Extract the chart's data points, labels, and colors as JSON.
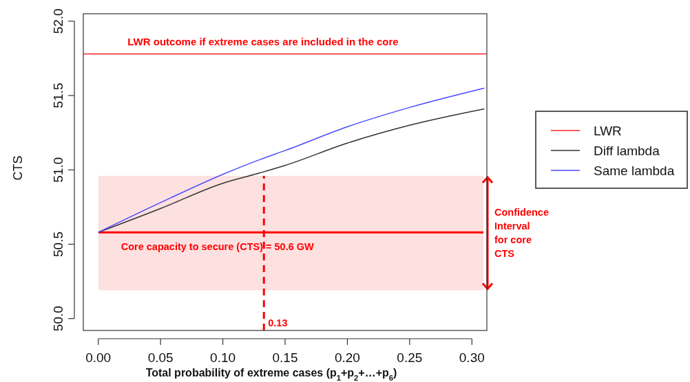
{
  "chart_data": {
    "type": "line",
    "xlabel": "Total probability of extreme cases (p$_{1}$+p$_{2}$+…+p$_{6}$)",
    "ylabel": "CTS",
    "xlim": [
      -0.012,
      0.312
    ],
    "xticks": [
      {
        "value": 0,
        "label": "0.00"
      },
      0.05,
      {
        "value": 0.1,
        "label": "0.10"
      },
      0.15,
      {
        "value": 0.2,
        "label": "0.20"
      },
      0.25,
      {
        "value": 0.3,
        "label": "0.30"
      }
    ],
    "ylim": [
      49.92,
      52.05
    ],
    "yticks": [
      {
        "value": 50,
        "label": "50.0"
      },
      50.5,
      {
        "value": 51,
        "label": "51.0"
      },
      51.5,
      {
        "value": 52,
        "label": "52.0"
      }
    ],
    "series": [
      {
        "name": "LWR",
        "color": "#ff2020",
        "x": [
          -0.012,
          0.312
        ],
        "values": [
          51.78,
          51.78
        ]
      },
      {
        "name": "Diff lambda",
        "color": "#333333",
        "x": [
          0,
          0.05,
          0.1,
          0.13,
          0.15,
          0.2,
          0.25,
          0.31
        ],
        "values": [
          50.58,
          50.74,
          50.91,
          50.98,
          51.03,
          51.18,
          51.3,
          51.41
        ]
      },
      {
        "name": "Same lambda",
        "color": "#4a4aff",
        "x": [
          0,
          0.05,
          0.1,
          0.13,
          0.15,
          0.2,
          0.25,
          0.31
        ],
        "values": [
          50.58,
          50.78,
          50.97,
          51.07,
          51.13,
          51.29,
          51.42,
          51.55
        ]
      }
    ],
    "ref_lines": [
      {
        "axis": "y",
        "value": 50.58,
        "label": "Core capacity to secure (CTS) = 50.6 GW",
        "color": "#ff0000",
        "line_style": "solid"
      },
      {
        "axis": "x",
        "value": 0.133,
        "label": "0.13",
        "color": "#ff0000",
        "line_style": "dashed"
      }
    ],
    "bands": [
      {
        "axis": "y",
        "from": 50.19,
        "to": 50.96,
        "label": "Confidence Interval for core CTS",
        "color": "#fde0e0"
      }
    ],
    "annotations": [
      {
        "text": "LWR outcome if extreme cases are included in the core",
        "x": 0.1323,
        "y": 51.78
      }
    ],
    "legend": "right",
    "grid": false,
    "line_style": "solid",
    "marker": "none"
  }
}
